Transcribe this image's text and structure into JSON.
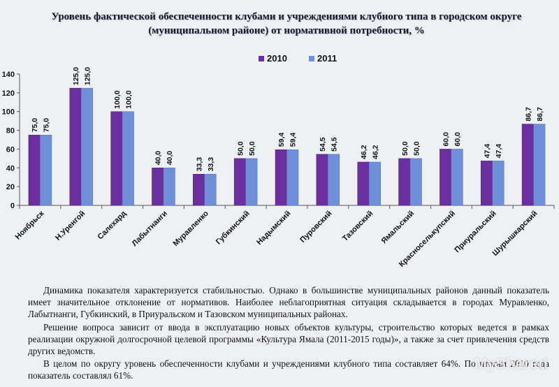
{
  "header": {
    "title_line1": "Уровень фактической обеспеченности клубами и учреждениями клубного типа в городском округе",
    "title_line2": "(муниципальном районе) от нормативной потребности, %"
  },
  "chart_data": {
    "type": "bar",
    "categories": [
      "Ноябрьск",
      "Н.Уренгой",
      "Салехард",
      "Лабытнанги",
      "Муравленко",
      "Губкинский",
      "Надымский",
      "Пуровский",
      "Тазовский",
      "Ямальский",
      "Красноселькупский",
      "Приуральский",
      "Шурышкарский"
    ],
    "series": [
      {
        "name": "2010",
        "values": [
          75.0,
          125.0,
          100.0,
          40.0,
          33.3,
          50.0,
          59.4,
          54.5,
          46.2,
          50.0,
          60.0,
          47.4,
          86.7
        ],
        "labels": [
          "75,0",
          "125,0",
          "100,0",
          "40,0",
          "33,3",
          "50,0",
          "59,4",
          "54,5",
          "46,2",
          "50,0",
          "60,0",
          "47,4",
          "86,7"
        ],
        "color": "#6b2fa0"
      },
      {
        "name": "2011",
        "values": [
          75.0,
          125.0,
          100.0,
          40.0,
          33.3,
          50.0,
          59.4,
          54.5,
          46.2,
          50.0,
          60.0,
          47.4,
          86.7
        ],
        "labels": [
          "75,0",
          "125,0",
          "100,0",
          "40,0",
          "33,3",
          "50,0",
          "59,4",
          "54,5",
          "46,2",
          "50,0",
          "60,0",
          "47,4",
          "86,7"
        ],
        "color": "#6f8fd9"
      }
    ],
    "ylim": [
      0,
      140
    ],
    "yticks": [
      0,
      20,
      40,
      60,
      80,
      100,
      120,
      140
    ],
    "grid": false,
    "legend_position": "top"
  },
  "text": {
    "paragraphs": [
      "Динамика показателя характеризуется стабильностью. Однако в большинстве муниципальных районов данный показатель имеет значительное отклонение от нормативов. Наиболее неблагоприятная ситуация складывается в городах Муравленко, Лабытнанги, Губкинский, в Приуральском и Тазовском муниципальных районах.",
      "Решение вопроса зависит от ввода в эксплуатацию новых объектов культуры, строительство которых ведется в рамках реализации окружной долгосрочной целевой программы «Культура Ямала (2011-2015 годы)», а также за счет привлечения средств других ведомств.",
      "В целом по округу уровень обеспеченности  клубами и учреждениями клубного типа составляет 64%. По итогам 2010 года показатель составлял 61%."
    ]
  },
  "watermark": {
    "text": "MyShared"
  }
}
